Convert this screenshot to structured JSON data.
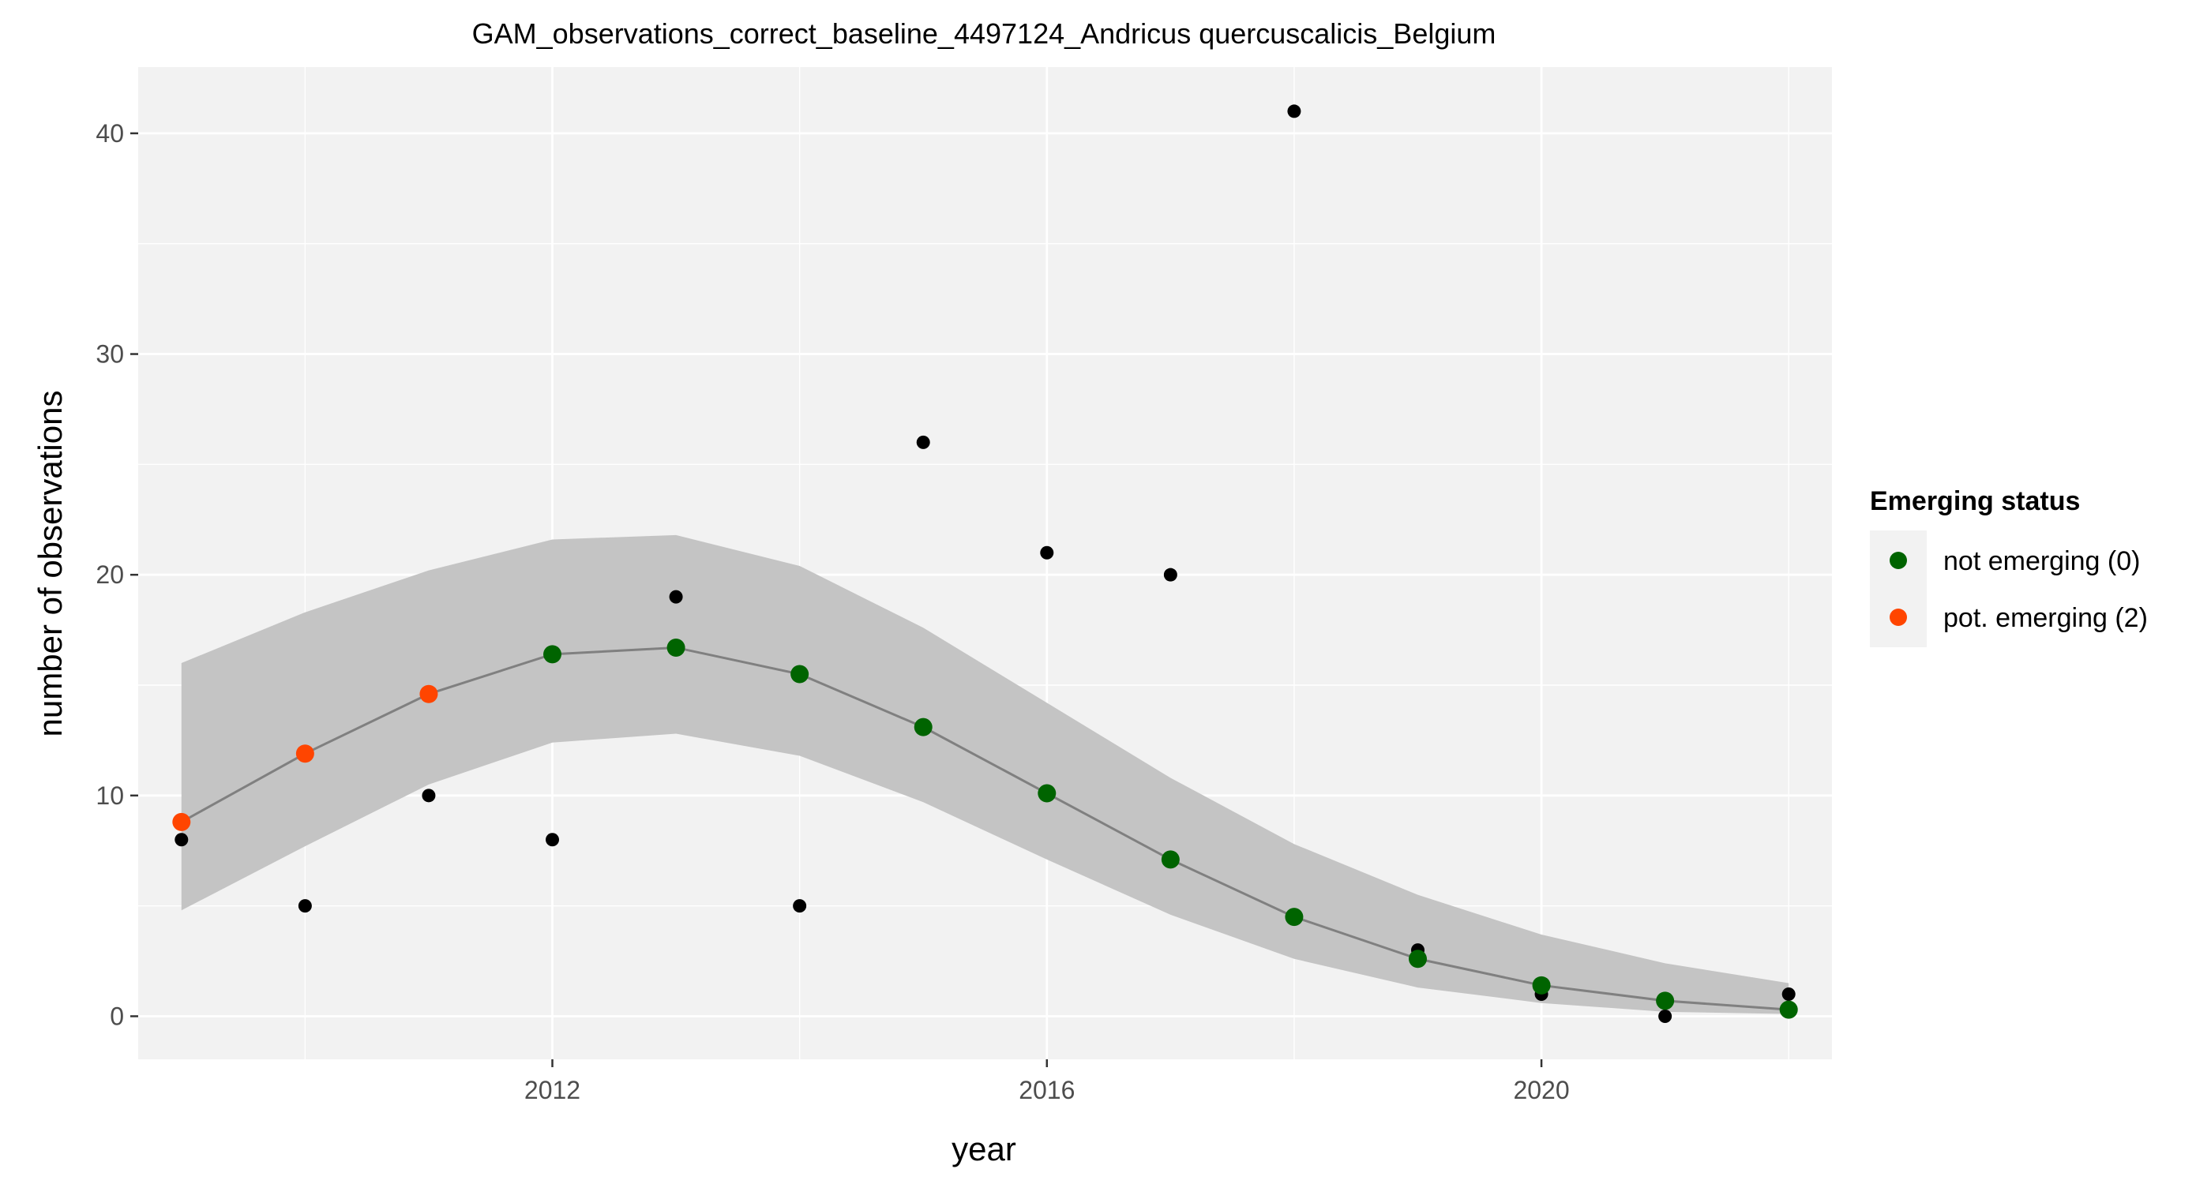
{
  "chart_data": {
    "type": "scatter",
    "title": "GAM_observations_correct_baseline_4497124_Andricus quercuscalicis_Belgium",
    "xlabel": "year",
    "ylabel": "number of observations",
    "xlim": [
      2008.65,
      2022.35
    ],
    "ylim": [
      -1.95,
      43.0
    ],
    "x_ticks": [
      2012,
      2016,
      2020
    ],
    "y_ticks": [
      0,
      10,
      20,
      30,
      40
    ],
    "x_minor_gridlines": [
      2010,
      2014,
      2018,
      2022
    ],
    "y_minor_gridlines": [
      5,
      15,
      25,
      35
    ],
    "grid": true,
    "panel_background": "#f2f2f2",
    "legend": {
      "title": "Emerging status",
      "placement": "right",
      "entries": [
        {
          "label": "not emerging (0)",
          "color": "#006400"
        },
        {
          "label": "pot. emerging (2)",
          "color": "#ff4500"
        }
      ]
    },
    "observed": {
      "x": [
        2009,
        2010,
        2011,
        2012,
        2013,
        2014,
        2015,
        2016,
        2017,
        2018,
        2019,
        2020,
        2021,
        2022
      ],
      "y": [
        8,
        5,
        10,
        8,
        19,
        5,
        26,
        21,
        20,
        41,
        3,
        1,
        0,
        1
      ],
      "color": "#000000"
    },
    "fitted": {
      "x": [
        2009,
        2010,
        2011,
        2012,
        2013,
        2014,
        2015,
        2016,
        2017,
        2018,
        2019,
        2020,
        2021,
        2022
      ],
      "y": [
        8.8,
        11.9,
        14.6,
        16.4,
        16.7,
        15.5,
        13.1,
        10.1,
        7.1,
        4.5,
        2.6,
        1.4,
        0.7,
        0.3
      ],
      "status": [
        2,
        2,
        2,
        0,
        0,
        0,
        0,
        0,
        0,
        0,
        0,
        0,
        0,
        0
      ],
      "line_color": "#808080"
    },
    "confidence_band": {
      "x": [
        2009,
        2010,
        2011,
        2012,
        2013,
        2014,
        2015,
        2016,
        2017,
        2018,
        2019,
        2020,
        2021,
        2022
      ],
      "lower": [
        4.8,
        7.7,
        10.5,
        12.4,
        12.8,
        11.8,
        9.7,
        7.1,
        4.6,
        2.6,
        1.3,
        0.6,
        0.2,
        0.1
      ],
      "upper": [
        16.0,
        18.3,
        20.2,
        21.6,
        21.8,
        20.4,
        17.6,
        14.2,
        10.8,
        7.8,
        5.5,
        3.7,
        2.4,
        1.5
      ],
      "color": "#c4c4c4"
    }
  }
}
